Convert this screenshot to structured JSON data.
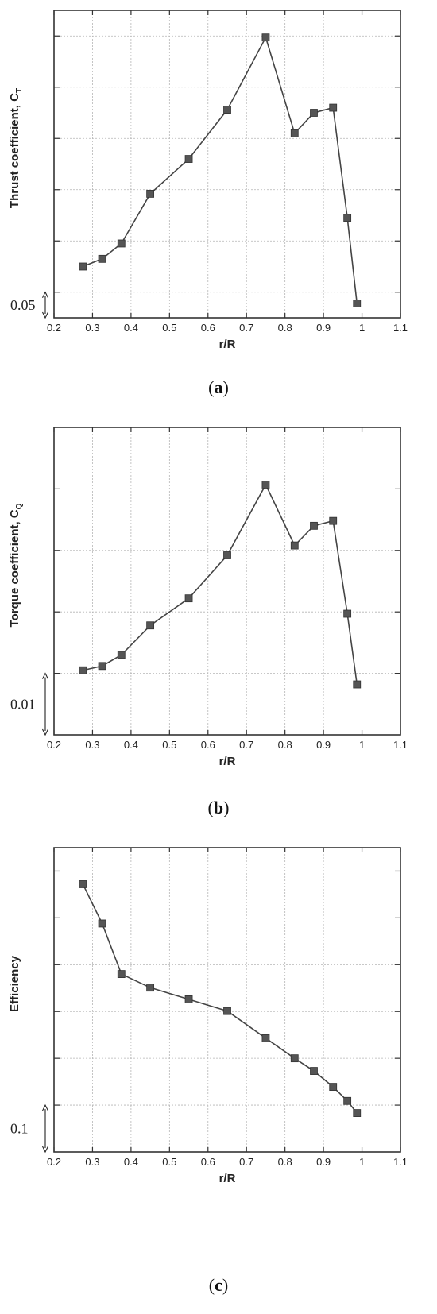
{
  "chart_data": [
    {
      "type": "line",
      "caption_letter": "a",
      "ylabel_main": "Thrust coefficient, C",
      "ylabel_sub": "T",
      "xlabel": "r/R",
      "xlim": [
        0.2,
        1.1
      ],
      "xticks": [
        0.2,
        0.3,
        0.4,
        0.5,
        0.6,
        0.7,
        0.8,
        0.9,
        1,
        1.1
      ],
      "xtick_labels": [
        "0.2",
        "0.3",
        "0.4",
        "0.5",
        "0.6",
        "0.7",
        "0.8",
        "0.9",
        "1",
        "1.1"
      ],
      "scale_bar_label": "0.05",
      "grid": true,
      "x": [
        0.275,
        0.325,
        0.375,
        0.45,
        0.55,
        0.65,
        0.75,
        0.825,
        0.875,
        0.925,
        0.962,
        0.987
      ],
      "y": [
        0.5,
        0.65,
        0.95,
        1.92,
        2.6,
        3.56,
        4.97,
        3.1,
        3.5,
        3.6,
        1.45,
        -0.22
      ],
      "ylim": [
        -0.5,
        5.5
      ],
      "ygrid": [
        0,
        1,
        2,
        3,
        4,
        5
      ]
    },
    {
      "type": "line",
      "caption_letter": "b",
      "ylabel_main": "Torque coefficient, C",
      "ylabel_sub": "Q",
      "xlabel": "r/R",
      "xlim": [
        0.2,
        1.1
      ],
      "xticks": [
        0.2,
        0.3,
        0.4,
        0.5,
        0.6,
        0.7,
        0.8,
        0.9,
        1,
        1.1
      ],
      "xtick_labels": [
        "0.2",
        "0.3",
        "0.4",
        "0.5",
        "0.6",
        "0.7",
        "0.8",
        "0.9",
        "1",
        "1.1"
      ],
      "scale_bar_label": "0.01",
      "grid": true,
      "x": [
        0.275,
        0.325,
        0.375,
        0.45,
        0.55,
        0.65,
        0.75,
        0.825,
        0.875,
        0.925,
        0.962,
        0.987
      ],
      "y": [
        0.05,
        0.12,
        0.3,
        0.78,
        1.22,
        1.92,
        3.07,
        2.08,
        2.4,
        2.48,
        0.97,
        -0.18
      ],
      "ylim": [
        -1,
        4
      ],
      "ygrid": [
        0,
        1,
        2,
        3
      ]
    },
    {
      "type": "line",
      "caption_letter": "c",
      "ylabel_main": "Efficiency",
      "ylabel_sub": "",
      "xlabel": "r/R",
      "xlim": [
        0.2,
        1.1
      ],
      "xticks": [
        0.2,
        0.3,
        0.4,
        0.5,
        0.6,
        0.7,
        0.8,
        0.9,
        1,
        1.1
      ],
      "xtick_labels": [
        "0.2",
        "0.3",
        "0.4",
        "0.5",
        "0.6",
        "0.7",
        "0.8",
        "0.9",
        "1",
        "1.1"
      ],
      "scale_bar_label": "0.1",
      "grid": true,
      "x": [
        0.275,
        0.325,
        0.375,
        0.45,
        0.55,
        0.65,
        0.75,
        0.825,
        0.875,
        0.925,
        0.962,
        0.987
      ],
      "y": [
        4.72,
        3.88,
        2.8,
        2.51,
        2.26,
        2.01,
        1.43,
        1.0,
        0.73,
        0.39,
        0.09,
        -0.17
      ],
      "ylim": [
        -1,
        5.5
      ],
      "ygrid": [
        0,
        1,
        2,
        3,
        4,
        5
      ]
    }
  ]
}
